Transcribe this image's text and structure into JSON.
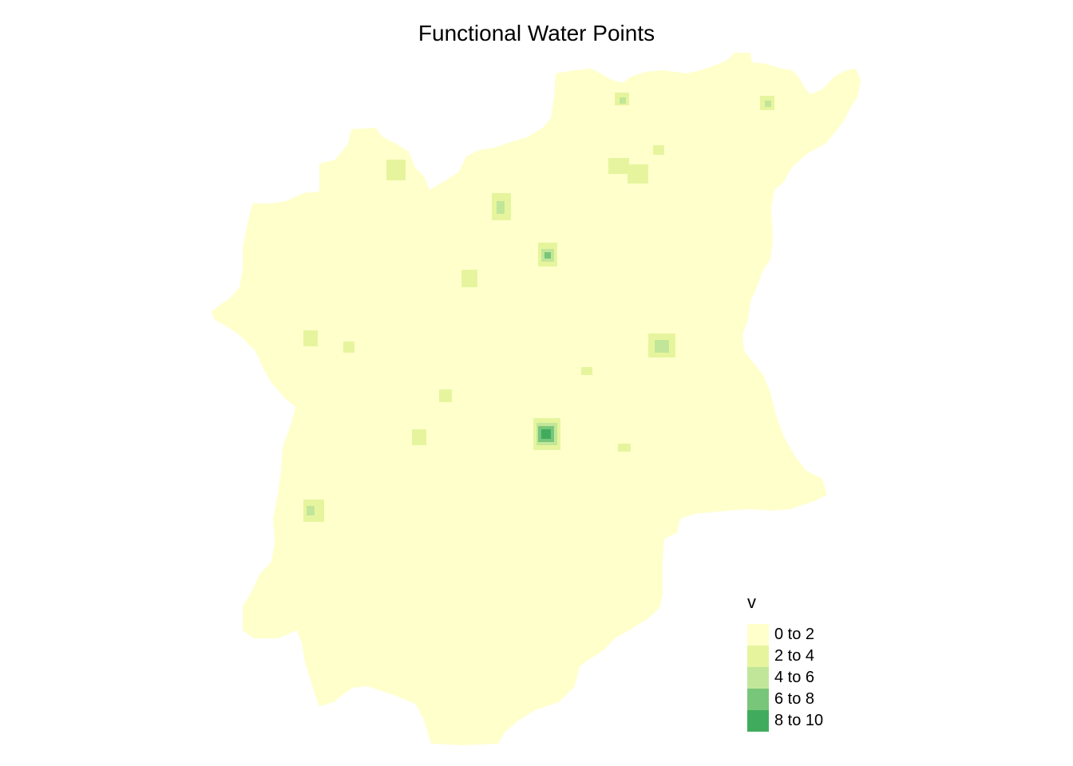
{
  "map": {
    "title": "Functional Water Points",
    "legend": {
      "title": "v",
      "items": [
        {
          "label": "0 to 2",
          "color": "#ffffcc"
        },
        {
          "label": "2 to 4",
          "color": "#e6f59d"
        },
        {
          "label": "4 to 6",
          "color": "#c2e699"
        },
        {
          "label": "6 to 8",
          "color": "#78c679"
        },
        {
          "label": "8 to 10",
          "color": "#41ab5d"
        }
      ]
    },
    "base_color": "#ffffcc"
  }
}
